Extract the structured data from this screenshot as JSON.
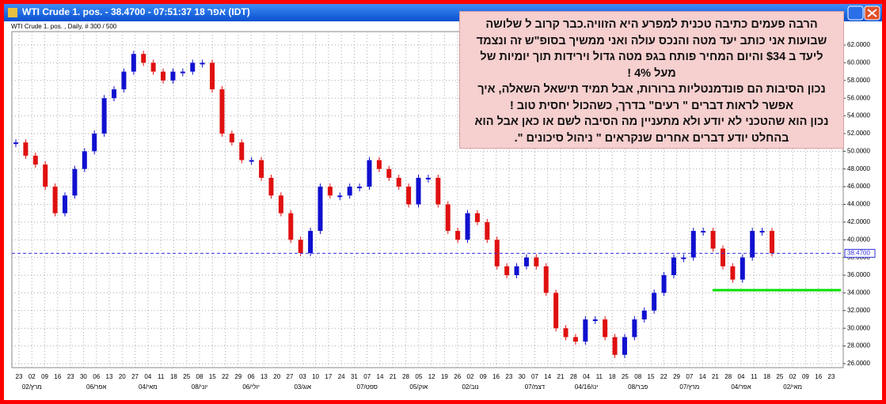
{
  "window": {
    "title": "WTI Crude 1. pos. - 38.4700 - 07:51:37 אפר 18 (IDT)",
    "subtitle": "WTI Crude 1. pos. , Daily, # 300 / 500"
  },
  "note": {
    "lines": [
      "הרבה פעמים כתיבה טכנית למפרע היא הזוויה.כבר קרוב ל שלושה",
      "שבועות אני כותב יעד מטה והנכס עולה ואני ממשיך בסופ\"ש זה ונצמד",
      "ליעד ב $34 והיום המחיר פותח בגפ מטה גדול וירידות תוך יומיות של",
      "מעל 4% !",
      "נכון הסיבות הם פונדמנטליות ברורות, אבל תמיד תישאל השאלה, איך",
      "אפשר לראות דברים \" רעים\" בדרך, כשהכול יחסית טוב !",
      "נכון הוא שהטכני לא יודע ולא מתעניין מה הסיבה לשם או כאן אבל הוא",
      "בהחלט יודע דברים אחרים שנקראים \" ניהול סיכונים \"."
    ]
  },
  "chart_data": {
    "type": "candlestick",
    "series": [
      {
        "name": "WTI Crude 1. pos.",
        "up_color": "#1010d0",
        "down_color": "#e01010",
        "values": [
          51,
          49.5,
          48.5,
          46,
          43,
          45,
          48,
          50,
          52,
          56,
          57,
          59,
          61,
          60,
          59,
          58,
          59,
          59,
          60,
          60,
          57,
          52,
          51,
          49,
          49,
          47,
          45,
          43,
          40,
          38.5,
          41,
          46,
          45,
          45,
          46,
          46,
          49,
          48,
          47,
          46,
          44,
          47,
          47,
          44,
          41,
          40,
          43,
          42,
          40,
          37,
          36,
          37,
          38,
          37,
          34,
          30,
          29,
          28.5,
          31,
          31,
          29,
          27,
          29,
          31,
          32,
          34,
          36,
          38,
          38,
          41,
          41,
          39,
          37,
          35.5,
          38,
          41,
          41,
          38.47
        ]
      }
    ],
    "ylim": [
      25.55,
      63.52
    ],
    "yticks": [
      {
        "value": 26,
        "label": "26.0000"
      },
      {
        "value": 28,
        "label": "28.0000"
      },
      {
        "value": 30,
        "label": "30.0000"
      },
      {
        "value": 32,
        "label": "32.0000"
      },
      {
        "value": 34,
        "label": "34.0000"
      },
      {
        "value": 36,
        "label": "36.0000"
      },
      {
        "value": 38,
        "label": "38.0000"
      },
      {
        "value": 40,
        "label": "40.0000"
      },
      {
        "value": 42,
        "label": "42.0000"
      },
      {
        "value": 44,
        "label": "44.0000"
      },
      {
        "value": 46,
        "label": "46.0000"
      },
      {
        "value": 48,
        "label": "48.0000"
      },
      {
        "value": 50,
        "label": "50.0000"
      },
      {
        "value": 52,
        "label": "52.0000"
      },
      {
        "value": 54,
        "label": "54.0000"
      },
      {
        "value": 56,
        "label": "56.0000"
      },
      {
        "value": 58,
        "label": "58.0000"
      },
      {
        "value": 60,
        "label": "60.0000"
      },
      {
        "value": 62,
        "label": "62.0000"
      }
    ],
    "current_price": {
      "value": 38.47,
      "label": "38.4700",
      "color": "#3030e0"
    },
    "support_line": {
      "value": 34.3,
      "color": "#00e000"
    },
    "x_labels": [
      "23",
      "02",
      "09",
      "16",
      "23",
      "30",
      "06",
      "13",
      "20",
      "27",
      "04",
      "11",
      "18",
      "25",
      "08",
      "15",
      "22",
      "29",
      "06",
      "13",
      "20",
      "27",
      "03",
      "10",
      "17",
      "24",
      "31",
      "07",
      "14",
      "21",
      "28",
      "05",
      "12",
      "19",
      "26",
      "02",
      "09",
      "16",
      "23",
      "30",
      "07",
      "14",
      "21",
      "28",
      "04",
      "11",
      "18",
      "25",
      "08",
      "15",
      "22",
      "29",
      "07",
      "14",
      "21",
      "28",
      "04",
      "11",
      "18",
      "25",
      "02",
      "09",
      "16",
      "23"
    ],
    "month_labels": [
      "02/מרץ",
      "06/אפר",
      "04/מאי",
      "08/יוני",
      "06/יולי",
      "03/אוג",
      "07/ספט",
      "05/אוק",
      "02/נוב",
      "07/דצמ",
      "04/16/ינו",
      "08/פבר",
      "07/מרץ",
      "04/אפר",
      "02/מאי"
    ],
    "grid": true
  }
}
